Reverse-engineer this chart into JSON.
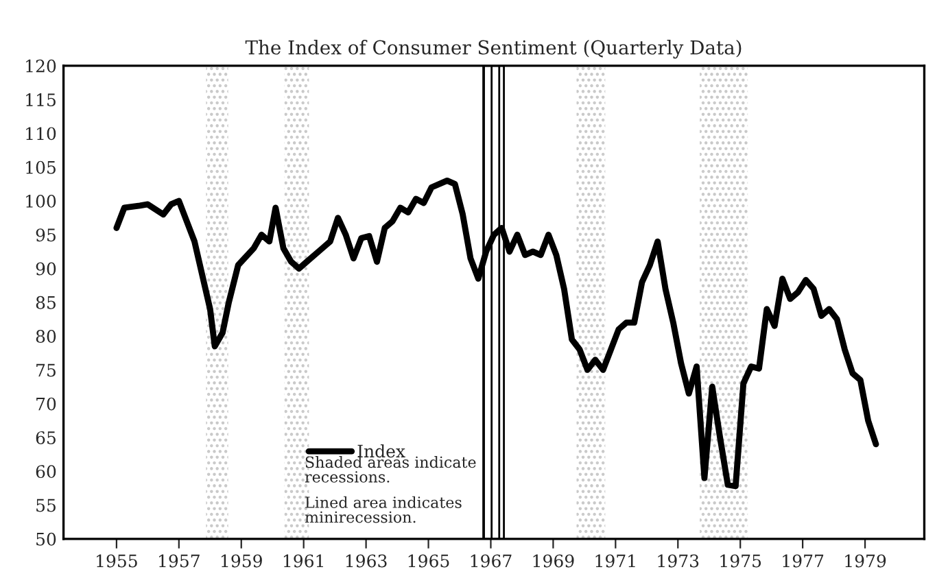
{
  "chart_data": {
    "type": "line",
    "title": "The Index of Consumer Sentiment (Quarterly Data)",
    "x": [
      1955.0,
      1955.25,
      1955.75,
      1956.0,
      1956.5,
      1956.75,
      1957.0,
      1957.5,
      1958.0,
      1958.15,
      1958.4,
      1958.6,
      1958.9,
      1959.4,
      1959.65,
      1959.9,
      1960.1,
      1960.35,
      1960.6,
      1960.85,
      1961.1,
      1961.6,
      1961.85,
      1962.1,
      1962.35,
      1962.6,
      1962.85,
      1963.1,
      1963.35,
      1963.6,
      1963.85,
      1964.1,
      1964.35,
      1964.6,
      1964.85,
      1965.1,
      1965.6,
      1965.85,
      1966.1,
      1966.35,
      1966.6,
      1966.85,
      1967.1,
      1967.35,
      1967.6,
      1967.85,
      1968.1,
      1968.35,
      1968.6,
      1968.85,
      1969.1,
      1969.35,
      1969.6,
      1969.85,
      1970.1,
      1970.35,
      1970.6,
      1970.85,
      1971.1,
      1971.35,
      1971.6,
      1971.85,
      1972.1,
      1972.35,
      1972.6,
      1972.85,
      1973.1,
      1973.35,
      1973.6,
      1973.85,
      1974.1,
      1974.35,
      1974.6,
      1974.85,
      1975.1,
      1975.35,
      1975.6,
      1975.85,
      1976.1,
      1976.35,
      1976.6,
      1976.85,
      1977.1,
      1977.35,
      1977.6,
      1977.85,
      1978.1,
      1978.35,
      1978.6,
      1978.85,
      1979.1,
      1979.35
    ],
    "series": [
      {
        "name": "Index",
        "color": "#000000",
        "values": [
          96,
          99,
          99.3,
          99.5,
          98,
          99.5,
          100,
          94,
          84,
          78.5,
          80.5,
          85,
          90.5,
          93,
          95,
          94,
          99,
          93,
          91,
          90,
          91,
          93,
          94,
          97.5,
          95,
          91.5,
          94.5,
          94.8,
          91,
          96,
          97,
          99,
          98.3,
          100.3,
          99.7,
          102,
          103,
          102.5,
          98,
          91.5,
          88.5,
          92.5,
          95,
          96,
          92.5,
          95,
          92,
          92.5,
          92,
          95,
          92,
          87,
          79.5,
          78,
          75,
          76.5,
          75,
          78,
          81,
          82,
          82,
          88,
          90.5,
          94,
          87,
          82,
          76,
          71.5,
          75.5,
          59,
          72.5,
          65,
          58,
          57.8,
          73,
          75.5,
          75.2,
          84,
          81.5,
          88.5,
          85.5,
          86.5,
          88.3,
          87,
          83,
          84,
          82.5,
          78,
          74.5,
          73.5,
          67.5,
          64
        ]
      }
    ],
    "xlim": [
      1953.3,
      1980.9
    ],
    "xticks": [
      1955,
      1957,
      1959,
      1961,
      1963,
      1965,
      1967,
      1969,
      1971,
      1973,
      1975,
      1977,
      1979
    ],
    "ylim": [
      50,
      120
    ],
    "yticks": [
      50,
      55,
      60,
      65,
      70,
      75,
      80,
      85,
      90,
      95,
      100,
      105,
      110,
      115,
      120
    ],
    "bands": [
      {
        "axis": "x",
        "from": 1957.87,
        "to": 1958.58,
        "color": "#c8c8c8"
      },
      {
        "axis": "x",
        "from": 1960.38,
        "to": 1961.17,
        "color": "#c8c8c8"
      },
      {
        "axis": "x",
        "from": 1966.76,
        "to": 1967.42,
        "color": "#000000"
      },
      {
        "axis": "x",
        "from": 1969.75,
        "to": 1970.67,
        "color": "#c8c8c8"
      },
      {
        "axis": "x",
        "from": 1973.7,
        "to": 1975.24,
        "color": "#c8c8c8"
      }
    ],
    "annotations": [
      "Shaded areas indicate\nrecessions.",
      "Lined area indicates\nminirecession."
    ],
    "legend": "bottom",
    "grid": false,
    "marker": "none",
    "line_style": "solid"
  }
}
